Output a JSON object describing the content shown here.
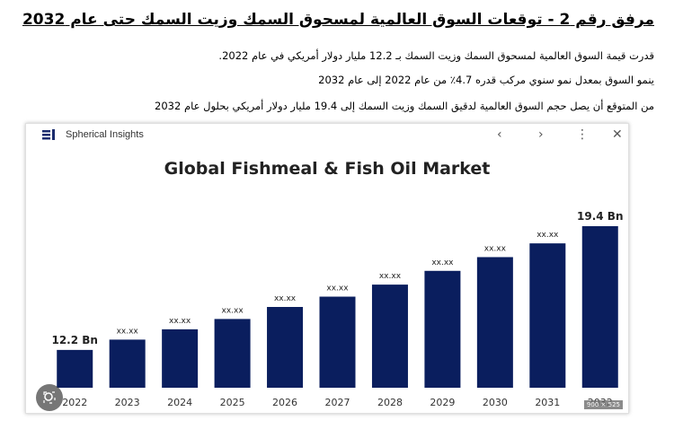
{
  "document": {
    "heading": "مرفق رقم 2 - توقعات السوق العالمية لمسحوق السمك وزيت السمك حتى عام 2032",
    "paragraphs": [
      "قدرت قيمة السوق العالمية لمسحوق السمك وزيت السمك بـ 12.2 مليار دولار أمريكي في عام 2022.",
      "ينمو السوق بمعدل نمو سنوي مركب قدره 4.7٪ من عام 2022 إلى عام 2032",
      "من المتوقع أن يصل حجم السوق العالمية لدقيق السمك وزيت السمك إلى 19.4 مليار دولار أمريكي بحلول عام 2032"
    ]
  },
  "card": {
    "brand": "Spherical Insights",
    "nav_icons": [
      "chevron-left-icon",
      "chevron-right-icon",
      "more-icon",
      "close-icon"
    ],
    "size_badge": "900 × 525"
  },
  "colors": {
    "bar": "#0a1e5e",
    "text": "#222222",
    "logo_blue": "#1a2b6d"
  },
  "chart_data": {
    "type": "bar",
    "title": "Global Fishmeal & Fish Oil Market",
    "categories": [
      "2022",
      "2023",
      "2024",
      "2025",
      "2026",
      "2027",
      "2028",
      "2029",
      "2030",
      "2031",
      "2032"
    ],
    "values": [
      12.2,
      12.8,
      13.4,
      14.0,
      14.7,
      15.3,
      16.0,
      16.8,
      17.6,
      18.4,
      19.4
    ],
    "data_labels": [
      "12.2 Bn",
      "xx.xx",
      "xx.xx",
      "xx.xx",
      "xx.xx",
      "xx.xx",
      "xx.xx",
      "xx.xx",
      "xx.xx",
      "xx.xx",
      "19.4 Bn"
    ],
    "ylim": [
      10,
      20
    ],
    "grid": false,
    "legend": "none"
  }
}
